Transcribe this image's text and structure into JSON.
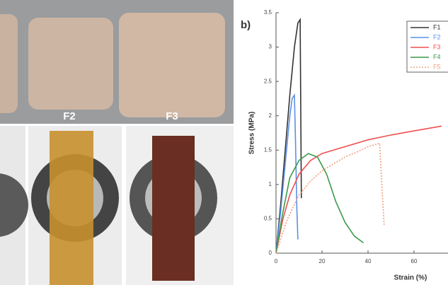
{
  "photos": {
    "labels": [
      "F2",
      "F3"
    ]
  },
  "chart_data": {
    "type": "line",
    "panel_label": "b)",
    "x_label": "Strain (%)",
    "y_label": "Stress (MPa)",
    "xlim": [
      0,
      72
    ],
    "ylim": [
      0,
      3.5
    ],
    "xticks": [
      0,
      20,
      40,
      60
    ],
    "yticks": [
      0,
      0.5,
      1,
      1.5,
      2,
      2.5,
      3,
      3.5
    ],
    "series": [
      {
        "name": "F1",
        "color": "#333333",
        "style": "solid",
        "x": [
          0,
          2,
          4,
          6,
          8,
          9.5,
          10.5,
          11
        ],
        "values": [
          0,
          0.7,
          1.5,
          2.3,
          3.0,
          3.35,
          3.4,
          0.8
        ]
      },
      {
        "name": "F2",
        "color": "#5b8fe8",
        "style": "solid",
        "x": [
          0,
          2,
          4,
          6,
          7,
          8,
          8.5,
          9,
          9.5
        ],
        "values": [
          0,
          0.6,
          1.3,
          2.0,
          2.25,
          2.3,
          1.6,
          0.7,
          0.2
        ]
      },
      {
        "name": "F3",
        "color": "#f05050",
        "style": "solid",
        "x": [
          0,
          3,
          6,
          10,
          15,
          20,
          30,
          40,
          50,
          60,
          72
        ],
        "values": [
          0,
          0.5,
          0.85,
          1.15,
          1.35,
          1.45,
          1.55,
          1.65,
          1.72,
          1.78,
          1.85
        ]
      },
      {
        "name": "F4",
        "color": "#3a9a4a",
        "style": "solid",
        "x": [
          0,
          3,
          6,
          10,
          14,
          18,
          22,
          26,
          30,
          34,
          38
        ],
        "values": [
          0,
          0.6,
          1.1,
          1.35,
          1.45,
          1.4,
          1.15,
          0.75,
          0.45,
          0.25,
          0.15
        ]
      },
      {
        "name": "F5",
        "color": "#f0a080",
        "style": "dotted",
        "x": [
          0,
          5,
          10,
          15,
          20,
          25,
          30,
          35,
          40,
          45,
          46,
          47
        ],
        "values": [
          0,
          0.5,
          0.85,
          1.05,
          1.2,
          1.3,
          1.4,
          1.47,
          1.55,
          1.6,
          1.0,
          0.4
        ]
      }
    ]
  }
}
